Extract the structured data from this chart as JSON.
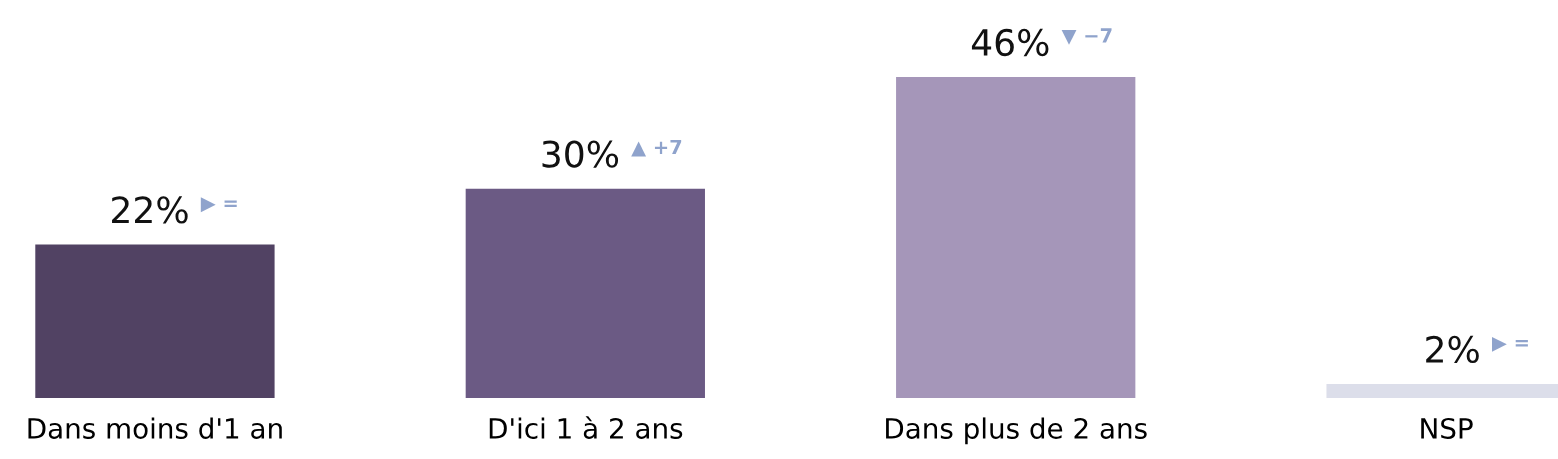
{
  "chart_data": {
    "type": "bar",
    "categories": [
      "Dans moins d'1 an",
      "D'ici 1 à 2 ans",
      "Dans plus de 2 ans",
      "NSP"
    ],
    "values": [
      22,
      30,
      46,
      2
    ],
    "colors": [
      "#514263",
      "#6b5a84",
      "#a596b9",
      "#dcdeea"
    ],
    "value_labels": [
      "22%",
      "30%",
      "46%",
      "2%"
    ],
    "annotations": [
      {
        "text": "▶ =",
        "x": "Dans moins d'1 an",
        "y": 22
      },
      {
        "text": "▲ +7",
        "x": "D'ici 1 à 2 ans",
        "y": 30
      },
      {
        "text": "▼ −7",
        "x": "Dans plus de 2 ans",
        "y": 46
      },
      {
        "text": "▶ =",
        "x": "NSP",
        "y": 2
      }
    ],
    "tick_labels": "x",
    "grid": false,
    "legend": false
  }
}
